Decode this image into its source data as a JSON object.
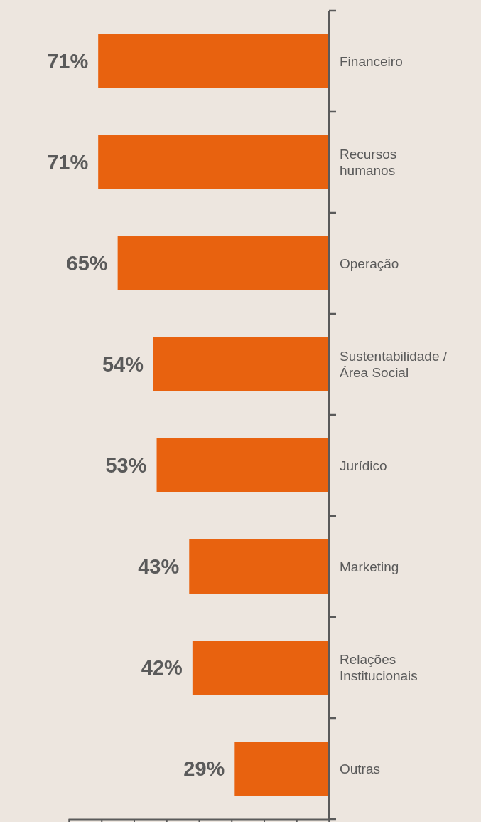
{
  "chart_data": {
    "type": "bar",
    "orientation": "horizontal",
    "categories": [
      "Financeiro",
      "Recursos humanos",
      "Operação",
      "Sustentabilidade / Área Social",
      "Jurídico",
      "Marketing",
      "Relações Institucionais",
      "Outras"
    ],
    "values": [
      71,
      71,
      65,
      54,
      53,
      43,
      42,
      29
    ],
    "color": "#e8620f",
    "data_labels": true,
    "value_labels": [
      "71%",
      "71%",
      "65%",
      "54%",
      "53%",
      "43%",
      "42%",
      "29%"
    ],
    "xlim": [
      80,
      0
    ],
    "xticks": [
      {
        "value": 80,
        "label": null
      },
      {
        "value": 70,
        "label": null
      },
      {
        "value": 60,
        "label": null
      },
      {
        "value": 50,
        "label": null
      },
      {
        "value": 40,
        "label": null
      },
      {
        "value": 30,
        "label": null
      },
      {
        "value": 20,
        "label": null
      },
      {
        "value": 10,
        "label": null
      },
      {
        "value": 0,
        "label": null
      }
    ],
    "tick_labels": "y",
    "grid": false
  }
}
